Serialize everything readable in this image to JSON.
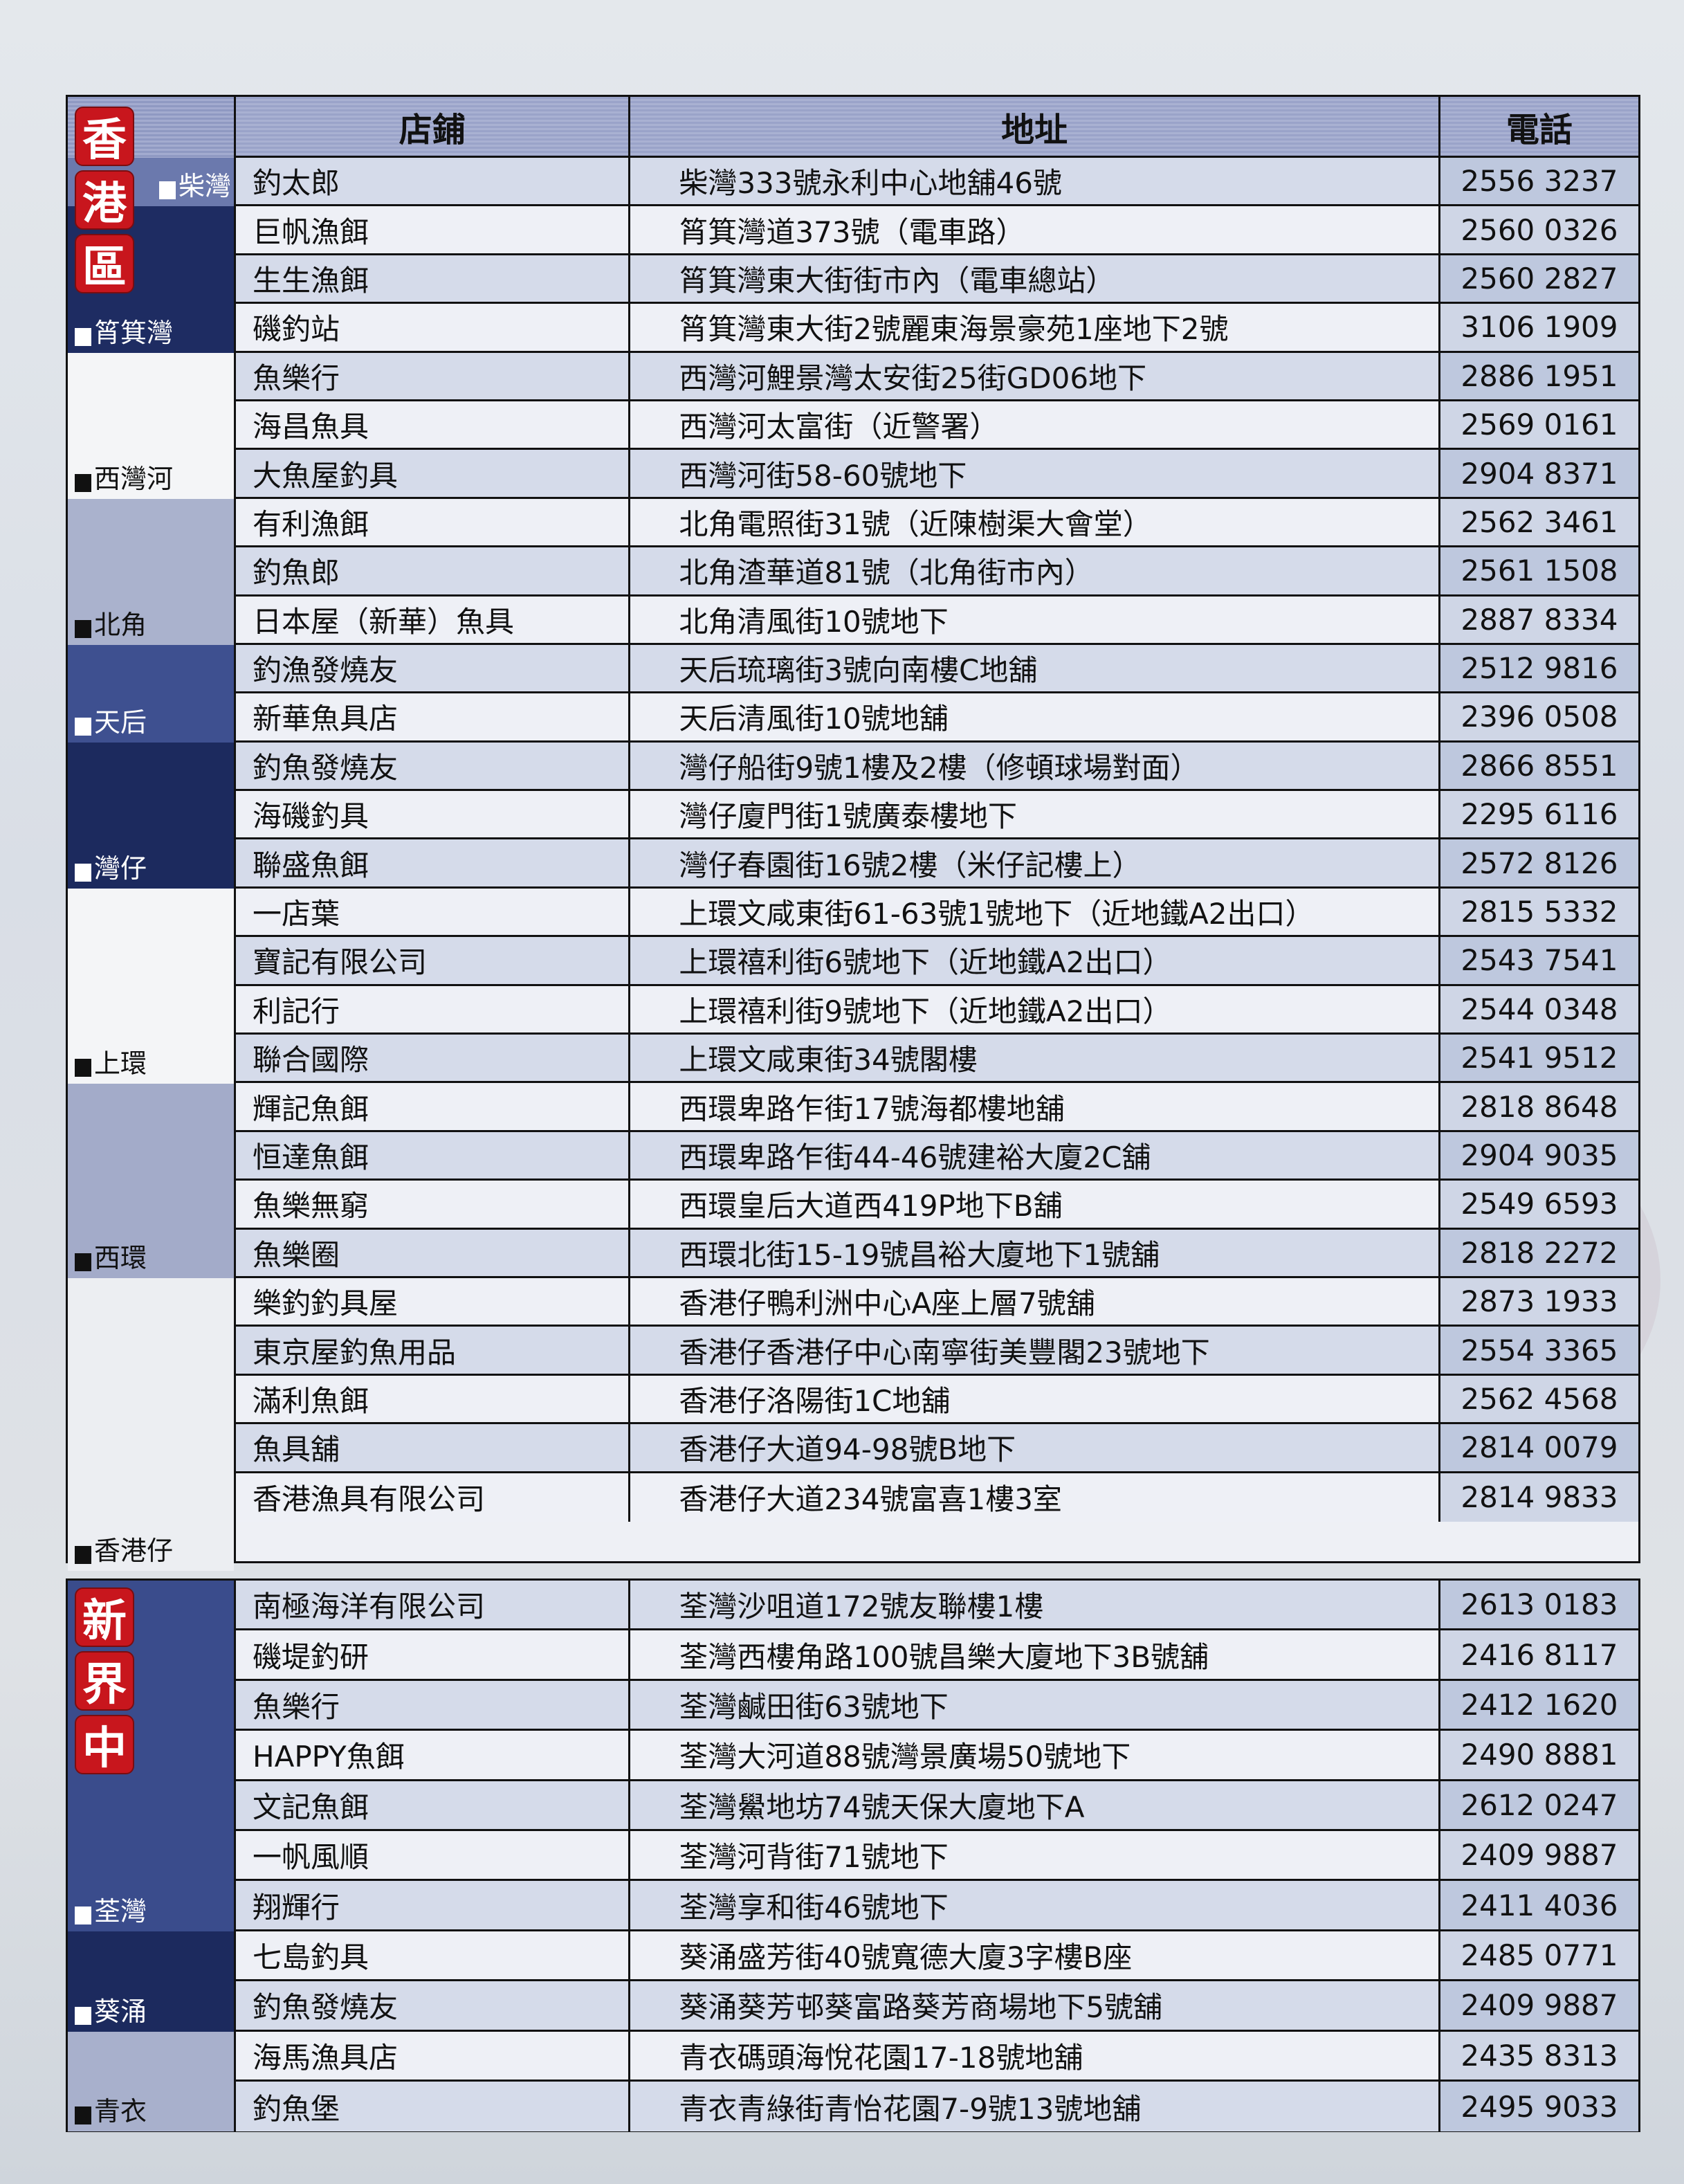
{
  "columns": {
    "store": "店鋪",
    "address": "地址",
    "phone": "電話"
  },
  "colors": {
    "badge_red": "#c8161d",
    "navy": "#1c2a5e",
    "medium_blue": "#3e5090",
    "light_blue": "#a8b0cc",
    "header": "#9aa3c9"
  },
  "regions": [
    {
      "badge": [
        "香",
        "港",
        "區"
      ],
      "districts": [
        {
          "label": "柴灣",
          "rows": 1,
          "bg": "#6b79ad",
          "text": "dark"
        },
        {
          "label": "筲箕灣",
          "rows": 3,
          "bg": "#1e2c62",
          "text": "dark"
        },
        {
          "label": "西灣河",
          "rows": 3,
          "bg": "#f4f5f7",
          "text": "light"
        },
        {
          "label": "北角",
          "rows": 3,
          "bg": "#aab2cd",
          "text": "light"
        },
        {
          "label": "天后",
          "rows": 2,
          "bg": "#3e5090",
          "text": "dark"
        },
        {
          "label": "灣仔",
          "rows": 3,
          "bg": "#1c2a5e",
          "text": "dark"
        },
        {
          "label": "上環",
          "rows": 4,
          "bg": "#f4f5f7",
          "text": "light"
        },
        {
          "label": "西環",
          "rows": 4,
          "bg": "#a3abc9",
          "text": "light"
        },
        {
          "label": "香港仔",
          "rows": 6,
          "bg": "#eceef2",
          "text": "light"
        }
      ],
      "rows": [
        {
          "store": "釣太郎",
          "address": "柴灣333號永利中心地舖46號",
          "phone": "2556 3237"
        },
        {
          "store": "巨帆漁餌",
          "address": "筲箕灣道373號（電車路）",
          "phone": "2560 0326"
        },
        {
          "store": "生生漁餌",
          "address": "筲箕灣東大街街市內（電車總站）",
          "phone": "2560 2827"
        },
        {
          "store": "磯釣站",
          "address": "筲箕灣東大街2號麗東海景豪苑1座地下2號",
          "phone": "3106 1909"
        },
        {
          "store": "魚樂行",
          "address": "西灣河鯉景灣太安街25街GD06地下",
          "phone": "2886 1951"
        },
        {
          "store": "海昌魚具",
          "address": "西灣河太富街（近警署）",
          "phone": "2569 0161"
        },
        {
          "store": "大魚屋釣具",
          "address": "西灣河街58-60號地下",
          "phone": "2904 8371"
        },
        {
          "store": "有利漁餌",
          "address": "北角電照街31號（近陳樹渠大會堂）",
          "phone": "2562 3461"
        },
        {
          "store": "釣魚郎",
          "address": "北角渣華道81號（北角街市內）",
          "phone": "2561 1508"
        },
        {
          "store": "日本屋（新華）魚具",
          "address": "北角清風街10號地下",
          "phone": "2887 8334"
        },
        {
          "store": "釣漁發燒友",
          "address": "天后琉璃街3號向南樓C地舖",
          "phone": "2512 9816"
        },
        {
          "store": "新華魚具店",
          "address": "天后清風街10號地舖",
          "phone": "2396 0508"
        },
        {
          "store": "釣魚發燒友",
          "address": "灣仔船街9號1樓及2樓（修頓球場對面）",
          "phone": "2866 8551"
        },
        {
          "store": "海磯釣具",
          "address": "灣仔廈門街1號廣泰樓地下",
          "phone": "2295 6116"
        },
        {
          "store": "聯盛魚餌",
          "address": "灣仔春園街16號2樓（米仔記樓上）",
          "phone": "2572 8126"
        },
        {
          "store": "一店葉",
          "address": "上環文咸東街61-63號1號地下（近地鐵A2出口）",
          "phone": "2815 5332"
        },
        {
          "store": "寶記有限公司",
          "address": "上環禧利街6號地下（近地鐵A2出口）",
          "phone": "2543 7541"
        },
        {
          "store": "利記行",
          "address": "上環禧利街9號地下（近地鐵A2出口）",
          "phone": "2544 0348"
        },
        {
          "store": "聯合國際",
          "address": "上環文咸東街34號閣樓",
          "phone": "2541 9512"
        },
        {
          "store": "輝記魚餌",
          "address": "西環卑路乍街17號海都樓地舖",
          "phone": "2818 8648"
        },
        {
          "store": "恒達魚餌",
          "address": "西環卑路乍街44-46號建裕大廈2C舖",
          "phone": "2904 9035"
        },
        {
          "store": "魚樂無窮",
          "address": "西環皇后大道西419P地下B舖",
          "phone": "2549 6593"
        },
        {
          "store": "魚樂圈",
          "address": "西環北街15-19號昌裕大廈地下1號舖",
          "phone": "2818 2272"
        },
        {
          "store": "樂釣釣具屋",
          "address": "香港仔鴨利洲中心A座上層7號舖",
          "phone": "2873 1933"
        },
        {
          "store": "東京屋釣魚用品",
          "address": "香港仔香港仔中心南寧街美豐閣23號地下",
          "phone": "2554 3365"
        },
        {
          "store": "滿利魚餌",
          "address": "香港仔洛陽街1C地舖",
          "phone": "2562 4568"
        },
        {
          "store": "魚具舖",
          "address": "香港仔大道94-98號B地下",
          "phone": "2814 0079"
        },
        {
          "store": "香港漁具有限公司",
          "address": "香港仔大道234號富喜1樓3室",
          "phone": "2814 9833"
        }
      ]
    },
    {
      "badge": [
        "新",
        "界",
        "中"
      ],
      "districts": [
        {
          "label": "荃灣",
          "rows": 7,
          "bg": "#3a4c8c",
          "text": "dark"
        },
        {
          "label": "葵涌",
          "rows": 2,
          "bg": "#1c2a5e",
          "text": "dark"
        },
        {
          "label": "青衣",
          "rows": 2,
          "bg": "#a8b0cc",
          "text": "light"
        }
      ],
      "rows": [
        {
          "store": "南極海洋有限公司",
          "address": "荃灣沙咀道172號友聯樓1樓",
          "phone": "2613 0183"
        },
        {
          "store": "磯堤釣研",
          "address": "荃灣西樓角路100號昌樂大廈地下3B號舖",
          "phone": "2416 8117"
        },
        {
          "store": "魚樂行",
          "address": "荃灣鹹田街63號地下",
          "phone": "2412 1620"
        },
        {
          "store": "HAPPY魚餌",
          "address": "荃灣大河道88號灣景廣場50號地下",
          "phone": "2490 8881"
        },
        {
          "store": "文記魚餌",
          "address": "荃灣鱟地坊74號天保大廈地下A",
          "phone": "2612 0247"
        },
        {
          "store": "一帆風順",
          "address": "荃灣河背街71號地下",
          "phone": "2409 9887"
        },
        {
          "store": "翔輝行",
          "address": "荃灣享和街46號地下",
          "phone": "2411 4036"
        },
        {
          "store": "七島釣具",
          "address": "葵涌盛芳街40號寬德大廈3字樓B座",
          "phone": "2485 0771"
        },
        {
          "store": "釣魚發燒友",
          "address": "葵涌葵芳邨葵富路葵芳商場地下5號舖",
          "phone": "2409 9887"
        },
        {
          "store": "海馬漁具店",
          "address": "青衣碼頭海悅花園17-18號地舖",
          "phone": "2435 8313"
        },
        {
          "store": "釣魚堡",
          "address": "青衣青綠街青怡花園7-9號13號地舖",
          "phone": "2495 9033"
        }
      ]
    }
  ]
}
